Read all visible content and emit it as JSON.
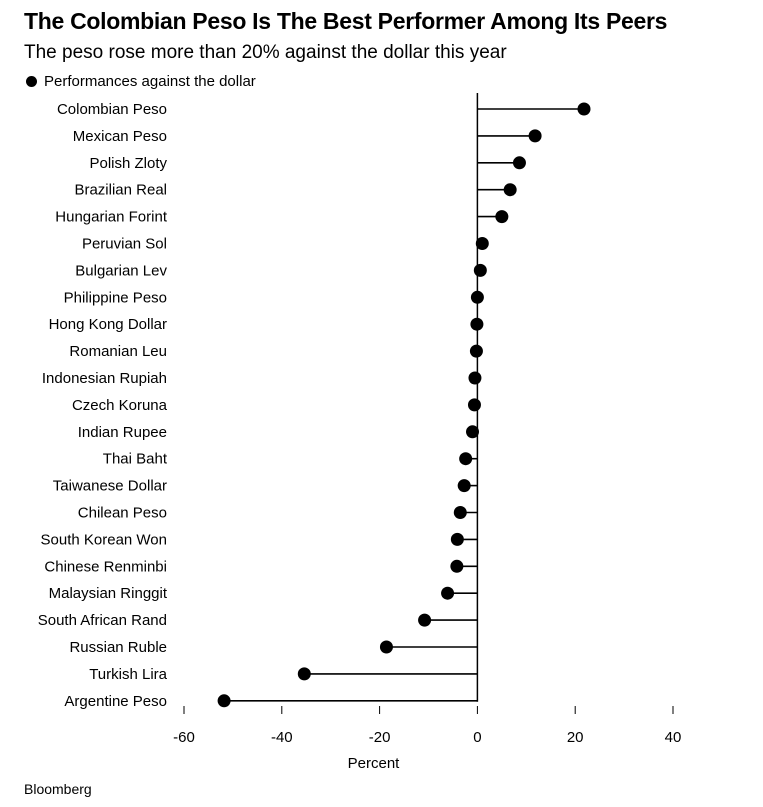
{
  "chart_data": {
    "type": "lollipop",
    "title": "The Colombian Peso Is The Best Performer Among Its Peers",
    "subtitle": "The peso rose more than 20% against the dollar this year",
    "legend": {
      "label": "Performances against the dollar",
      "placement": "top-left",
      "marker": "dot"
    },
    "xlabel": "Percent",
    "xlim": [
      -60,
      40
    ],
    "x_ticks": [
      -60,
      -40,
      -20,
      0,
      20,
      40
    ],
    "grid": false,
    "orientation": "horizontal",
    "categories": [
      "Colombian Peso",
      "Mexican Peso",
      "Polish Zloty",
      "Brazilian Real",
      "Hungarian Forint",
      "Peruvian Sol",
      "Bulgarian Lev",
      "Philippine Peso",
      "Hong Kong Dollar",
      "Romanian Leu",
      "Indonesian Rupiah",
      "Czech Koruna",
      "Indian Rupee",
      "Thai Baht",
      "Taiwanese Dollar",
      "Chilean Peso",
      "South Korean Won",
      "Chinese Renminbi",
      "Malaysian Ringgit",
      "South African Rand",
      "Russian Ruble",
      "Turkish Lira",
      "Argentine Peso"
    ],
    "values": [
      21.8,
      11.8,
      8.6,
      6.7,
      5.0,
      1.0,
      0.6,
      0.0,
      -0.1,
      -0.2,
      -0.5,
      -0.6,
      -1.0,
      -2.4,
      -2.7,
      -3.5,
      -4.1,
      -4.2,
      -6.1,
      -10.8,
      -18.6,
      -35.4,
      -51.8
    ],
    "colors": {
      "marker": "#000000",
      "stem": "#000000",
      "zero_line": "#000000"
    }
  },
  "footer": {
    "source": "Bloomberg"
  }
}
